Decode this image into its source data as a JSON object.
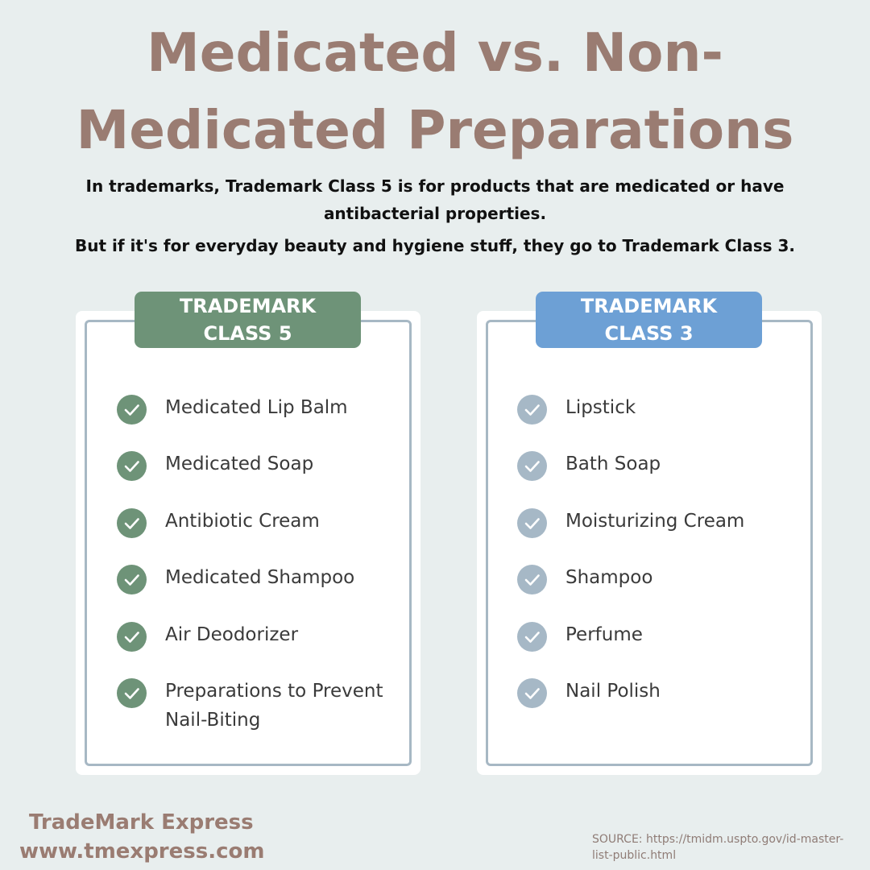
{
  "title_line1": "Medicated vs. Non-",
  "title_line2": "Medicated Preparations",
  "subtitle_line1": "In trademarks, Trademark Class 5 is for products that are medicated or have antibacterial properties.",
  "subtitle_line2": "But if it's for everyday beauty and hygiene stuff, they go to Trademark Class 3.",
  "class5": {
    "badge_line1": "TRADEMARK",
    "badge_line2": "CLASS 5",
    "color": "#6e9378",
    "check_color": "#6e9378",
    "items": [
      "Medicated Lip Balm",
      "Medicated Soap",
      "Antibiotic Cream",
      "Medicated Shampoo",
      "Air Deodorizer",
      "Preparations to Prevent Nail-Biting"
    ]
  },
  "class3": {
    "badge_line1": "TRADEMARK",
    "badge_line2": "CLASS 3",
    "color": "#6da0d5",
    "check_color": "#a6b8c6",
    "items": [
      "Lipstick",
      "Bath Soap",
      "Moisturizing Cream",
      "Shampoo",
      "Perfume",
      "Nail Polish"
    ]
  },
  "brand_name": "TradeMark Express",
  "brand_url": "www.tmexpress.com",
  "source": "SOURCE: https://tmidm.uspto.gov/id-master-list-public.html"
}
